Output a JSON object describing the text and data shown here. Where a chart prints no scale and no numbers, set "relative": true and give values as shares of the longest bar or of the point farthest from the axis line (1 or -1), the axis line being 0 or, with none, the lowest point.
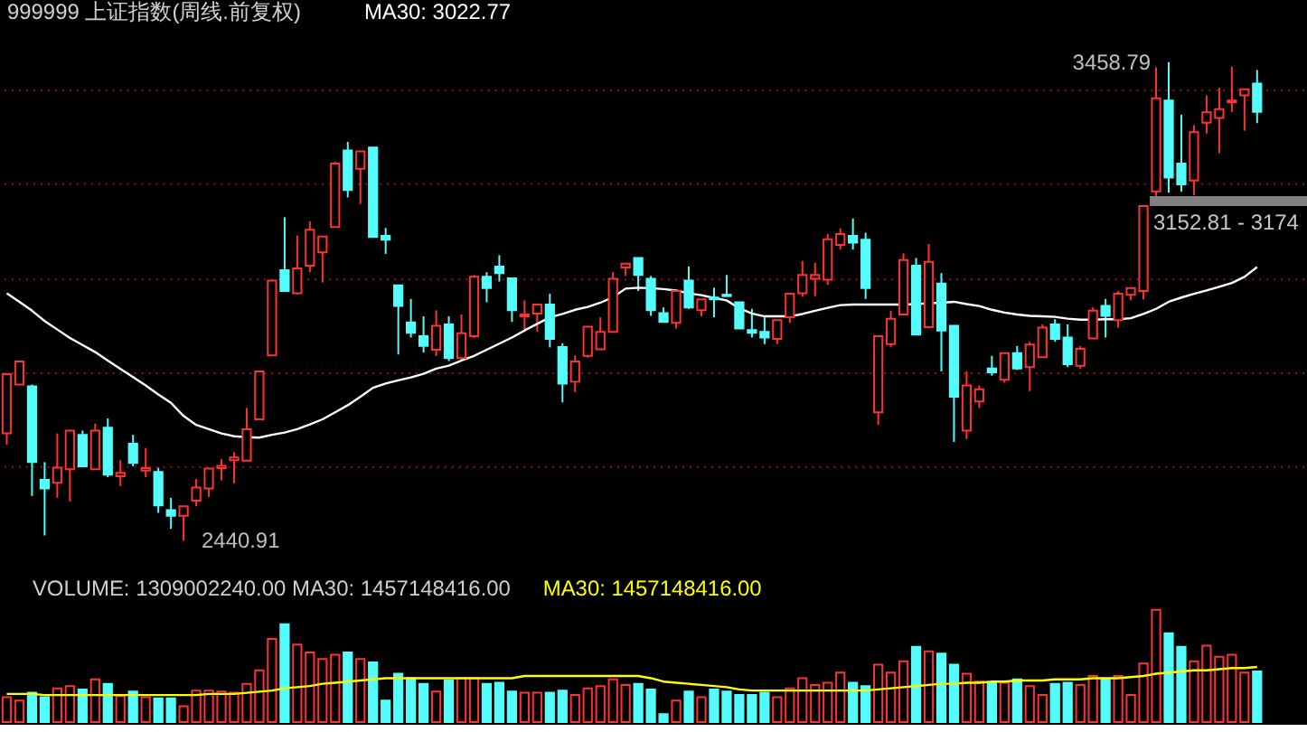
{
  "chart_data": [
    {
      "type": "candlestick",
      "title": "999999 上证指数(周线.前复权)",
      "categories": [
        null,
        null,
        null,
        null,
        null,
        null,
        null,
        null,
        null,
        null,
        null,
        null,
        null,
        null,
        null,
        null,
        null,
        null,
        null,
        null,
        null,
        null,
        null,
        null,
        null,
        null,
        null,
        null,
        null,
        null,
        null,
        null,
        null,
        null,
        null,
        null,
        null,
        null,
        null,
        null,
        null,
        null,
        null,
        null,
        null,
        null,
        null,
        null,
        null,
        null,
        null,
        null,
        null,
        null,
        null,
        null,
        null,
        null,
        null,
        null,
        null,
        null,
        null,
        null,
        null,
        null,
        null,
        null,
        null,
        null,
        null,
        null,
        null,
        null,
        null,
        null,
        null,
        null,
        null,
        null,
        null,
        null,
        null,
        null,
        null,
        null,
        null,
        null,
        null,
        null,
        null,
        null,
        null,
        null,
        null,
        null,
        null,
        null,
        null,
        null
      ],
      "ohlc": [
        [
          2669,
          2795,
          2645,
          2795
        ],
        [
          2773,
          2822,
          2773,
          2822
        ],
        [
          2769,
          2773,
          2536,
          2608
        ],
        [
          2570,
          2608,
          2452,
          2552
        ],
        [
          2564,
          2669,
          2532,
          2596
        ],
        [
          2593,
          2675,
          2524,
          2675
        ],
        [
          2666,
          2675,
          2599,
          2599
        ],
        [
          2593,
          2690,
          2593,
          2675
        ],
        [
          2681,
          2701,
          2576,
          2581
        ],
        [
          2578,
          2612,
          2557,
          2585
        ],
        [
          2647,
          2666,
          2599,
          2606
        ],
        [
          2590,
          2638,
          2576,
          2595
        ],
        [
          2587,
          2596,
          2500,
          2516
        ],
        [
          2506,
          2532,
          2466,
          2494
        ],
        [
          2494,
          2514,
          2440.91,
          2514
        ],
        [
          2526,
          2572,
          2514,
          2554
        ],
        [
          2552,
          2594,
          2534,
          2594
        ],
        [
          2595,
          2614,
          2569,
          2600
        ],
        [
          2612,
          2629,
          2563,
          2618
        ],
        [
          2611,
          2723,
          2611,
          2678
        ],
        [
          2699,
          2801,
          2699,
          2801
        ],
        [
          2835,
          2994,
          2835,
          2994
        ],
        [
          3016,
          3129,
          2972,
          2972
        ],
        [
          2967,
          3090,
          2964,
          3020
        ],
        [
          3026,
          3120,
          3012,
          3102
        ],
        [
          3054,
          3088,
          2990,
          3088
        ],
        [
          3108,
          3247,
          3108,
          3243
        ],
        [
          3271,
          3289,
          3171,
          3187
        ],
        [
          3232,
          3269,
          3157,
          3269
        ],
        [
          3277,
          3277,
          3087,
          3087
        ],
        [
          3089,
          3106,
          3051,
          3081
        ],
        [
          2984,
          2984,
          2837,
          2940
        ],
        [
          2905,
          2955,
          2873,
          2883
        ],
        [
          2876,
          2918,
          2841,
          2855
        ],
        [
          2847,
          2931,
          2834,
          2898
        ],
        [
          2901,
          2918,
          2823,
          2829
        ],
        [
          2829,
          2922,
          2825,
          2882
        ],
        [
          2876,
          3006,
          2872,
          3002
        ],
        [
          3002,
          3012,
          2948,
          2978
        ],
        [
          3024,
          3048,
          2992,
          3010
        ],
        [
          2999,
          2999,
          2906,
          2931
        ],
        [
          2918,
          2952,
          2885,
          2922
        ],
        [
          2924,
          2943,
          2885,
          2943
        ],
        [
          2943,
          2966,
          2852,
          2870
        ],
        [
          2853,
          2861,
          2735,
          2775
        ],
        [
          2779,
          2835,
          2757,
          2822
        ],
        [
          2834,
          2896,
          2830,
          2896
        ],
        [
          2848,
          2916,
          2848,
          2885
        ],
        [
          2885,
          3012,
          2885,
          2998
        ],
        [
          3022,
          3030,
          3004,
          3030
        ],
        [
          3042,
          3042,
          2972,
          3006
        ],
        [
          2998,
          3004,
          2919,
          2931
        ],
        [
          2925,
          2937,
          2906,
          2906
        ],
        [
          2904,
          2972,
          2892,
          2972
        ],
        [
          2994,
          3024,
          2934,
          2937
        ],
        [
          2931,
          2954,
          2918,
          2954
        ],
        [
          2958,
          2979,
          2916,
          2954
        ],
        [
          2964,
          3006,
          2961,
          2961
        ],
        [
          2948,
          2948,
          2892,
          2892
        ],
        [
          2889,
          2934,
          2873,
          2883
        ],
        [
          2885,
          2916,
          2859,
          2873
        ],
        [
          2870,
          2910,
          2859,
          2910
        ],
        [
          2916,
          2966,
          2904,
          2966
        ],
        [
          2967,
          3036,
          2960,
          3006
        ],
        [
          2998,
          3032,
          2961,
          3006
        ],
        [
          2996,
          3093,
          2985,
          3082
        ],
        [
          3070,
          3105,
          3060,
          3093
        ],
        [
          3089,
          3126,
          3060,
          3075
        ],
        [
          3081,
          3096,
          2955,
          2978
        ],
        [
          2714,
          2876,
          2687,
          2876
        ],
        [
          2859,
          2930,
          2852,
          2913
        ],
        [
          2922,
          3052,
          2922,
          3038
        ],
        [
          3026,
          3042,
          2879,
          2879
        ],
        [
          2895,
          3072,
          2895,
          3034
        ],
        [
          2988,
          3010,
          2801,
          2888
        ],
        [
          2898,
          2898,
          2651,
          2747
        ],
        [
          2675,
          2801,
          2657,
          2771
        ],
        [
          2737,
          2771,
          2723,
          2763
        ],
        [
          2807,
          2834,
          2792,
          2799
        ],
        [
          2783,
          2840,
          2777,
          2840
        ],
        [
          2840,
          2855,
          2804,
          2807
        ],
        [
          2810,
          2864,
          2759,
          2858
        ],
        [
          2831,
          2901,
          2831,
          2894
        ],
        [
          2901,
          2912,
          2864,
          2870
        ],
        [
          2873,
          2901,
          2810,
          2816
        ],
        [
          2813,
          2855,
          2807,
          2849
        ],
        [
          2871,
          2937,
          2871,
          2930
        ],
        [
          2940,
          2955,
          2873,
          2919
        ],
        [
          2910,
          2972,
          2894,
          2966
        ],
        [
          2964,
          2978,
          2952,
          2978
        ],
        [
          2972,
          3152.81,
          2954,
          3152.81
        ],
        [
          3184,
          3448,
          3174,
          3382
        ],
        [
          3377,
          3458.79,
          3181,
          3213
        ],
        [
          3243,
          3347,
          3183,
          3199
        ],
        [
          3207,
          3325,
          3176,
          3310
        ],
        [
          3330,
          3388,
          3307,
          3352
        ],
        [
          3340,
          3404,
          3265,
          3359
        ],
        [
          3373,
          3449,
          3353,
          3377
        ],
        [
          3388,
          3401,
          3313,
          3401
        ],
        [
          3413,
          3442,
          3329,
          3353
        ]
      ],
      "colors": [
        "#ff3232",
        "#ff3232",
        "#54fcfc",
        "#54fcfc",
        "#ff3232",
        "#ff3232",
        "#54fcfc",
        "#ff3232",
        "#54fcfc",
        "#ff3232",
        "#54fcfc",
        "#ff3232",
        "#54fcfc",
        "#54fcfc",
        "#ff3232",
        "#ff3232",
        "#ff3232",
        "#ff3232",
        "#ff3232",
        "#ff3232",
        "#ff3232",
        "#ff3232",
        "#54fcfc",
        "#ff3232",
        "#ff3232",
        "#ff3232",
        "#ff3232",
        "#54fcfc",
        "#ff3232",
        "#54fcfc",
        "#54fcfc",
        "#54fcfc",
        "#54fcfc",
        "#54fcfc",
        "#ff3232",
        "#54fcfc",
        "#ff3232",
        "#ff3232",
        "#54fcfc",
        "#54fcfc",
        "#54fcfc",
        "#ff3232",
        "#ff3232",
        "#54fcfc",
        "#54fcfc",
        "#ff3232",
        "#ff3232",
        "#ff3232",
        "#ff3232",
        "#ff3232",
        "#54fcfc",
        "#54fcfc",
        "#54fcfc",
        "#ff3232",
        "#54fcfc",
        "#ff3232",
        "#54fcfc",
        "#54fcfc",
        "#54fcfc",
        "#54fcfc",
        "#54fcfc",
        "#ff3232",
        "#ff3232",
        "#ff3232",
        "#ff3232",
        "#ff3232",
        "#ff3232",
        "#54fcfc",
        "#54fcfc",
        "#ff3232",
        "#ff3232",
        "#ff3232",
        "#54fcfc",
        "#ff3232",
        "#54fcfc",
        "#54fcfc",
        "#ff3232",
        "#ff3232",
        "#54fcfc",
        "#ff3232",
        "#54fcfc",
        "#ff3232",
        "#ff3232",
        "#54fcfc",
        "#54fcfc",
        "#ff3232",
        "#ff3232",
        "#54fcfc",
        "#ff3232",
        "#ff3232",
        "#ff3232",
        "#ff3232",
        "#54fcfc",
        "#54fcfc",
        "#ff3232",
        "#ff3232",
        "#ff3232",
        "#ff3232",
        "#ff3232",
        "#54fcfc"
      ],
      "series": [
        {
          "type": "line",
          "name": "MA30: 3022.77",
          "color": "#ffffff",
          "values": [
            2967,
            2949,
            2930,
            2908,
            2890,
            2872,
            2857,
            2842,
            2824,
            2806,
            2789,
            2771,
            2752,
            2734,
            2706,
            2687,
            2678,
            2669,
            2663,
            2661,
            2660,
            2666,
            2671,
            2678,
            2688,
            2699,
            2714,
            2729,
            2747,
            2766,
            2775,
            2782,
            2788,
            2796,
            2807,
            2813,
            2824,
            2834,
            2847,
            2860,
            2873,
            2888,
            2902,
            2916,
            2923,
            2932,
            2938,
            2947,
            2959,
            2977,
            2979,
            2978,
            2976,
            2973,
            2967,
            2963,
            2957,
            2952,
            2935,
            2924,
            2918,
            2918,
            2918,
            2923,
            2930,
            2936,
            2942,
            2943,
            2943,
            2943,
            2943,
            2943,
            2944,
            2946,
            2947,
            2949,
            2944,
            2940,
            2932,
            2926,
            2922,
            2919,
            2918,
            2917,
            2913,
            2911,
            2911,
            2912,
            2912,
            2914,
            2923,
            2934,
            2949,
            2958,
            2966,
            2973,
            2981,
            2989,
            3002,
            3023
          ]
        }
      ],
      "yticks": [
        {
          "value": 2600,
          "label": null
        },
        {
          "value": 2800,
          "label": null
        },
        {
          "value": 3000,
          "label": null
        },
        {
          "value": 3200,
          "label": null
        },
        {
          "value": 3400,
          "label": null
        }
      ],
      "grid": "y",
      "tick_labels": false,
      "annotations": [
        "3458.79",
        "2440.91"
      ],
      "bands": [
        {
          "axis": "y",
          "from": 3152.81,
          "to": 3174,
          "label": "3152.81 - 3174",
          "color": "#808080"
        }
      ]
    },
    {
      "type": "bar",
      "relative": true,
      "title": "VOLUME: 1309002240.00  MA30: 1457148416.00",
      "categories": [
        null,
        null,
        null,
        null,
        null,
        null,
        null,
        null,
        null,
        null,
        null,
        null,
        null,
        null,
        null,
        null,
        null,
        null,
        null,
        null,
        null,
        null,
        null,
        null,
        null,
        null,
        null,
        null,
        null,
        null,
        null,
        null,
        null,
        null,
        null,
        null,
        null,
        null,
        null,
        null,
        null,
        null,
        null,
        null,
        null,
        null,
        null,
        null,
        null,
        null,
        null,
        null,
        null,
        null,
        null,
        null,
        null,
        null,
        null,
        null,
        null,
        null,
        null,
        null,
        null,
        null,
        null,
        null,
        null,
        null,
        null,
        null,
        null,
        null,
        null,
        null,
        null,
        null,
        null,
        null,
        null,
        null,
        null,
        null,
        null,
        null,
        null,
        null,
        null,
        null,
        null,
        null,
        null,
        null,
        null,
        null,
        null,
        null,
        null,
        null
      ],
      "series": [
        {
          "type": "bar",
          "colors": [
            "#ff3232",
            "#ff3232",
            "#54fcfc",
            "#54fcfc",
            "#ff3232",
            "#ff3232",
            "#54fcfc",
            "#ff3232",
            "#54fcfc",
            "#ff3232",
            "#54fcfc",
            "#ff3232",
            "#54fcfc",
            "#54fcfc",
            "#ff3232",
            "#ff3232",
            "#ff3232",
            "#ff3232",
            "#ff3232",
            "#ff3232",
            "#ff3232",
            "#ff3232",
            "#54fcfc",
            "#ff3232",
            "#ff3232",
            "#ff3232",
            "#ff3232",
            "#54fcfc",
            "#ff3232",
            "#54fcfc",
            "#54fcfc",
            "#54fcfc",
            "#54fcfc",
            "#54fcfc",
            "#ff3232",
            "#54fcfc",
            "#ff3232",
            "#ff3232",
            "#54fcfc",
            "#54fcfc",
            "#54fcfc",
            "#ff3232",
            "#ff3232",
            "#54fcfc",
            "#54fcfc",
            "#ff3232",
            "#ff3232",
            "#ff3232",
            "#ff3232",
            "#ff3232",
            "#54fcfc",
            "#54fcfc",
            "#54fcfc",
            "#ff3232",
            "#54fcfc",
            "#ff3232",
            "#54fcfc",
            "#54fcfc",
            "#54fcfc",
            "#54fcfc",
            "#54fcfc",
            "#ff3232",
            "#ff3232",
            "#ff3232",
            "#ff3232",
            "#ff3232",
            "#ff3232",
            "#54fcfc",
            "#54fcfc",
            "#ff3232",
            "#ff3232",
            "#ff3232",
            "#54fcfc",
            "#ff3232",
            "#54fcfc",
            "#54fcfc",
            "#ff3232",
            "#ff3232",
            "#54fcfc",
            "#ff3232",
            "#54fcfc",
            "#ff3232",
            "#ff3232",
            "#54fcfc",
            "#54fcfc",
            "#ff3232",
            "#ff3232",
            "#54fcfc",
            "#ff3232",
            "#ff3232",
            "#ff3232",
            "#ff3232",
            "#54fcfc",
            "#54fcfc",
            "#ff3232",
            "#ff3232",
            "#ff3232",
            "#ff3232",
            "#ff3232",
            "#54fcfc"
          ],
          "values": [
            0.22,
            0.19,
            0.26,
            0.22,
            0.3,
            0.32,
            0.29,
            0.38,
            0.34,
            0.23,
            0.27,
            0.22,
            0.21,
            0.21,
            0.14,
            0.28,
            0.28,
            0.27,
            0.26,
            0.34,
            0.46,
            0.74,
            0.87,
            0.69,
            0.62,
            0.56,
            0.6,
            0.62,
            0.56,
            0.53,
            0.19,
            0.43,
            0.39,
            0.34,
            0.27,
            0.37,
            0.39,
            0.39,
            0.34,
            0.35,
            0.27,
            0.26,
            0.26,
            0.26,
            0.28,
            0.24,
            0.3,
            0.32,
            0.38,
            0.33,
            0.34,
            0.29,
            0.07,
            0.19,
            0.27,
            0.22,
            0.29,
            0.27,
            0.24,
            0.24,
            0.26,
            0.22,
            0.3,
            0.39,
            0.33,
            0.35,
            0.44,
            0.35,
            0.32,
            0.51,
            0.44,
            0.54,
            0.67,
            0.63,
            0.61,
            0.51,
            0.43,
            0.36,
            0.35,
            0.35,
            0.38,
            0.32,
            0.24,
            0.34,
            0.35,
            0.33,
            0.41,
            0.38,
            0.41,
            0.24,
            0.52,
            1,
            0.79,
            0.67,
            0.54,
            0.68,
            0.58,
            0.6,
            0.44,
            0.45
          ]
        },
        {
          "type": "line",
          "name": "MA30: 1457148416.00",
          "color": "#ffff00",
          "values": [
            0.25,
            0.25,
            0.25,
            0.24,
            0.24,
            0.24,
            0.24,
            0.24,
            0.24,
            0.24,
            0.24,
            0.24,
            0.24,
            0.24,
            0.24,
            0.24,
            0.25,
            0.25,
            0.25,
            0.26,
            0.27,
            0.28,
            0.3,
            0.31,
            0.32,
            0.34,
            0.35,
            0.36,
            0.37,
            0.38,
            0.39,
            0.39,
            0.39,
            0.39,
            0.39,
            0.39,
            0.39,
            0.39,
            0.39,
            0.39,
            0.39,
            0.41,
            0.41,
            0.41,
            0.41,
            0.41,
            0.41,
            0.41,
            0.41,
            0.41,
            0.41,
            0.39,
            0.36,
            0.35,
            0.34,
            0.33,
            0.32,
            0.31,
            0.29,
            0.28,
            0.28,
            0.28,
            0.28,
            0.28,
            0.28,
            0.28,
            0.28,
            0.28,
            0.28,
            0.29,
            0.3,
            0.31,
            0.32,
            0.33,
            0.34,
            0.34,
            0.35,
            0.35,
            0.36,
            0.36,
            0.37,
            0.37,
            0.37,
            0.38,
            0.38,
            0.38,
            0.39,
            0.39,
            0.39,
            0.4,
            0.41,
            0.43,
            0.44,
            0.45,
            0.46,
            0.46,
            0.47,
            0.48,
            0.48,
            0.49
          ]
        }
      ]
    }
  ]
}
